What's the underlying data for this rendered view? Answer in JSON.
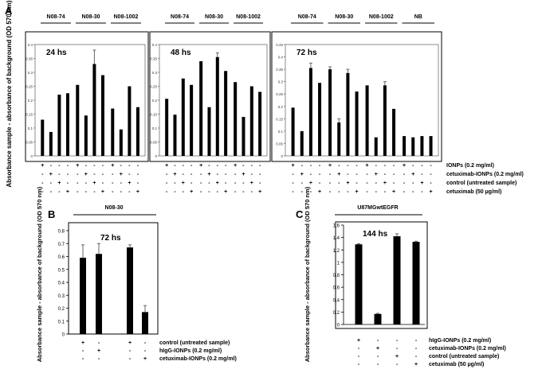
{
  "chart_data": [
    {
      "panel": "A",
      "type": "bar",
      "ylabel": "Absorbance sample - absorbance of background (OD 570 nm)",
      "condition_labels": [
        "IONPs (0.2 mg/ml)",
        "cetuximab-IONPs (0.2 mg/ml)",
        "control (untreated sample)",
        "cetuximab (50 µg/ml)"
      ],
      "subplots": [
        {
          "title": "24 hs",
          "ylim": [
            0,
            0.4
          ],
          "yticks": [
            "0",
            "0.05",
            "0.1",
            "0.15",
            "0.2",
            "0.25",
            "0.3",
            "0.35",
            "0.4"
          ],
          "groups": [
            {
              "label": "N08-74",
              "values": [
                0.13,
                0.086,
                0.22,
                0.225
              ],
              "errors": [
                0,
                0,
                0,
                0
              ]
            },
            {
              "label": "N08-30",
              "values": [
                0.255,
                0.145,
                0.33,
                0.29
              ],
              "errors": [
                0,
                0,
                0.05,
                0
              ]
            },
            {
              "label": "N08-1002",
              "values": [
                0.17,
                0.095,
                0.25,
                0.175
              ],
              "errors": [
                0,
                0,
                0,
                0
              ]
            }
          ]
        },
        {
          "title": "48 hs",
          "ylim": [
            0,
            0.4
          ],
          "yticks": [
            "0",
            "0.05",
            "0.1",
            "0.15",
            "0.2",
            "0.25",
            "0.3",
            "0.35",
            "0.4"
          ],
          "groups": [
            {
              "label": "N08-74",
              "values": [
                0.205,
                0.148,
                0.278,
                0.255
              ],
              "errors": [
                0,
                0,
                0,
                0
              ]
            },
            {
              "label": "N08-30",
              "values": [
                0.34,
                0.175,
                0.355,
                0.305
              ],
              "errors": [
                0,
                0,
                0.015,
                0
              ]
            },
            {
              "label": "N08-1002",
              "values": [
                0.265,
                0.14,
                0.25,
                0.23
              ],
              "errors": [
                0,
                0,
                0,
                0
              ]
            }
          ]
        },
        {
          "title": "72 hs",
          "ylim": [
            0,
            0.45
          ],
          "yticks": [
            "0",
            "0.05",
            "0.1",
            "0.15",
            "0.2",
            "0.25",
            "0.3",
            "0.35",
            "0.4",
            "0.45"
          ],
          "groups": [
            {
              "label": "N08-74",
              "values": [
                0.195,
                0.1,
                0.355,
                0.295
              ],
              "errors": [
                0,
                0,
                0.02,
                0
              ]
            },
            {
              "label": "N08-30",
              "values": [
                0.35,
                0.135,
                0.335,
                0.26
              ],
              "errors": [
                0.01,
                0.015,
                0.015,
                0
              ]
            },
            {
              "label": "N08-1002",
              "values": [
                0.285,
                0.075,
                0.285,
                0.19
              ],
              "errors": [
                0,
                0,
                0.015,
                0
              ]
            },
            {
              "label": "NB",
              "values": [
                0.08,
                0.075,
                0.08,
                0.08
              ],
              "errors": [
                0,
                0,
                0,
                0
              ]
            }
          ]
        }
      ]
    },
    {
      "panel": "B",
      "type": "bar",
      "group_label": "N08-30",
      "title": "72 hs",
      "ylabel": "Absorbance sample - absorbance of background (OD 570 nm)",
      "ylim": [
        0,
        0.8
      ],
      "yticks": [
        "0",
        "0.1",
        "0.2",
        "0.3",
        "0.4",
        "0.5",
        "0.6",
        "0.7",
        "0.8"
      ],
      "condition_labels": [
        "control (untreated sample)",
        "hIgG-IONPs (0.2 mg/ml)",
        "cetuximab-IONPs (0.2 mg/ml)"
      ],
      "bars": [
        {
          "value": 0.59,
          "error": 0.1
        },
        {
          "value": 0.62,
          "error": 0.08
        },
        {
          "value": 0.67,
          "error": 0.02
        },
        {
          "value": 0.17,
          "error": 0.05
        }
      ]
    },
    {
      "panel": "C",
      "type": "bar",
      "group_label": "U87MGwtEGFR",
      "title": "144 hs",
      "ylabel": "Absorbance sample - absorbance of background (OD 570 nm)",
      "ylim": [
        0,
        1.6
      ],
      "yticks": [
        "0",
        "0.2",
        "0.4",
        "0.6",
        "0.8",
        "1",
        "1.2",
        "1.4",
        "1.6"
      ],
      "condition_labels": [
        "hIgG-IONPs (0.2 mg/ml)",
        "cetuximab-IONPs (0.2 mg/ml)",
        "control (untreated sample)",
        "cetuximab (50 µg/ml)"
      ],
      "bars": [
        {
          "value": 1.29,
          "error": 0.01
        },
        {
          "value": 0.17,
          "error": 0.01
        },
        {
          "value": 1.42,
          "error": 0.04
        },
        {
          "value": 1.33,
          "error": 0.01
        }
      ]
    }
  ],
  "panel_letters": [
    "A",
    "B",
    "C"
  ],
  "pm_rows": {
    "A": [
      [
        "+",
        "-",
        "-",
        "-",
        "+",
        "-",
        "-",
        "-",
        "+",
        "-",
        "-",
        "-",
        "+",
        "-",
        "-",
        "-",
        "+",
        "-",
        "-",
        "-",
        "+",
        "-",
        "-",
        "-",
        "+",
        "-",
        "-",
        "-",
        "+",
        "-",
        "-",
        "-",
        "+",
        "-",
        "-",
        "-",
        "+",
        "-",
        "-",
        "-"
      ],
      [
        "-",
        "+",
        "-",
        "-",
        "-",
        "+",
        "-",
        "-",
        "-",
        "+",
        "-",
        "-",
        "-",
        "+",
        "-",
        "-",
        "-",
        "+",
        "-",
        "-",
        "-",
        "+",
        "-",
        "-",
        "-",
        "+",
        "-",
        "-",
        "-",
        "+",
        "-",
        "-",
        "-",
        "+",
        "-",
        "-",
        "-",
        "+",
        "-",
        "-"
      ],
      [
        "-",
        "-",
        "+",
        "-",
        "-",
        "-",
        "+",
        "-",
        "-",
        "-",
        "+",
        "-",
        "-",
        "-",
        "+",
        "-",
        "-",
        "-",
        "+",
        "-",
        "-",
        "-",
        "+",
        "-",
        "-",
        "-",
        "+",
        "-",
        "-",
        "-",
        "+",
        "-",
        "-",
        "-",
        "+",
        "-",
        "-",
        "-",
        "+",
        "-"
      ],
      [
        "-",
        "-",
        "-",
        "+",
        "-",
        "-",
        "-",
        "+",
        "-",
        "-",
        "-",
        "+",
        "-",
        "-",
        "-",
        "+",
        "-",
        "-",
        "-",
        "+",
        "-",
        "-",
        "-",
        "+",
        "-",
        "-",
        "-",
        "+",
        "-",
        "-",
        "-",
        "+",
        "-",
        "-",
        "-",
        "+",
        "-",
        "-",
        "-",
        "+"
      ]
    ],
    "B": [
      [
        "+",
        "-",
        "+",
        "-"
      ],
      [
        "-",
        "+",
        "-",
        "-"
      ],
      [
        "-",
        "-",
        "-",
        "+"
      ]
    ],
    "C": [
      [
        "+",
        "-",
        "-",
        "-"
      ],
      [
        "-",
        "+",
        "-",
        "-"
      ],
      [
        "-",
        "-",
        "+",
        "-"
      ],
      [
        "-",
        "-",
        "-",
        "+"
      ]
    ]
  }
}
